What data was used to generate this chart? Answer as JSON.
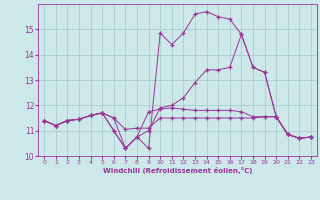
{
  "background_color": "#cce8e8",
  "grid_color": "#aacccc",
  "line_color": "#993399",
  "xlim": [
    -0.5,
    23.5
  ],
  "ylim": [
    10,
    16
  ],
  "yticks": [
    10,
    11,
    12,
    13,
    14,
    15
  ],
  "xticks": [
    0,
    1,
    2,
    3,
    4,
    5,
    6,
    7,
    8,
    9,
    10,
    11,
    12,
    13,
    14,
    15,
    16,
    17,
    18,
    19,
    20,
    21,
    22,
    23
  ],
  "xlabel": "Windchill (Refroidissement éolien,°C)",
  "series": [
    [
      11.4,
      11.2,
      11.4,
      11.45,
      11.6,
      11.7,
      11.5,
      11.05,
      11.1,
      11.1,
      11.5,
      11.5,
      11.5,
      11.5,
      11.5,
      11.5,
      11.5,
      11.5,
      11.5,
      11.55,
      11.55,
      10.85,
      10.7,
      10.75
    ],
    [
      11.4,
      11.2,
      11.4,
      11.45,
      11.6,
      11.7,
      11.5,
      10.3,
      10.75,
      11.75,
      11.85,
      11.9,
      11.85,
      11.8,
      11.8,
      11.8,
      11.8,
      11.75,
      11.55,
      11.55,
      11.55,
      10.85,
      10.7,
      10.75
    ],
    [
      11.4,
      11.2,
      11.4,
      11.45,
      11.6,
      11.7,
      11.0,
      10.3,
      10.75,
      11.0,
      11.9,
      12.0,
      12.3,
      12.9,
      13.4,
      13.4,
      13.5,
      14.8,
      13.5,
      13.3,
      11.55,
      10.85,
      10.7,
      10.75
    ],
    [
      11.4,
      11.2,
      11.4,
      11.45,
      11.6,
      11.7,
      11.0,
      10.3,
      10.75,
      10.3,
      14.85,
      14.4,
      14.85,
      15.6,
      15.7,
      15.5,
      15.4,
      14.8,
      13.5,
      13.3,
      11.55,
      10.85,
      10.7,
      10.75
    ]
  ]
}
